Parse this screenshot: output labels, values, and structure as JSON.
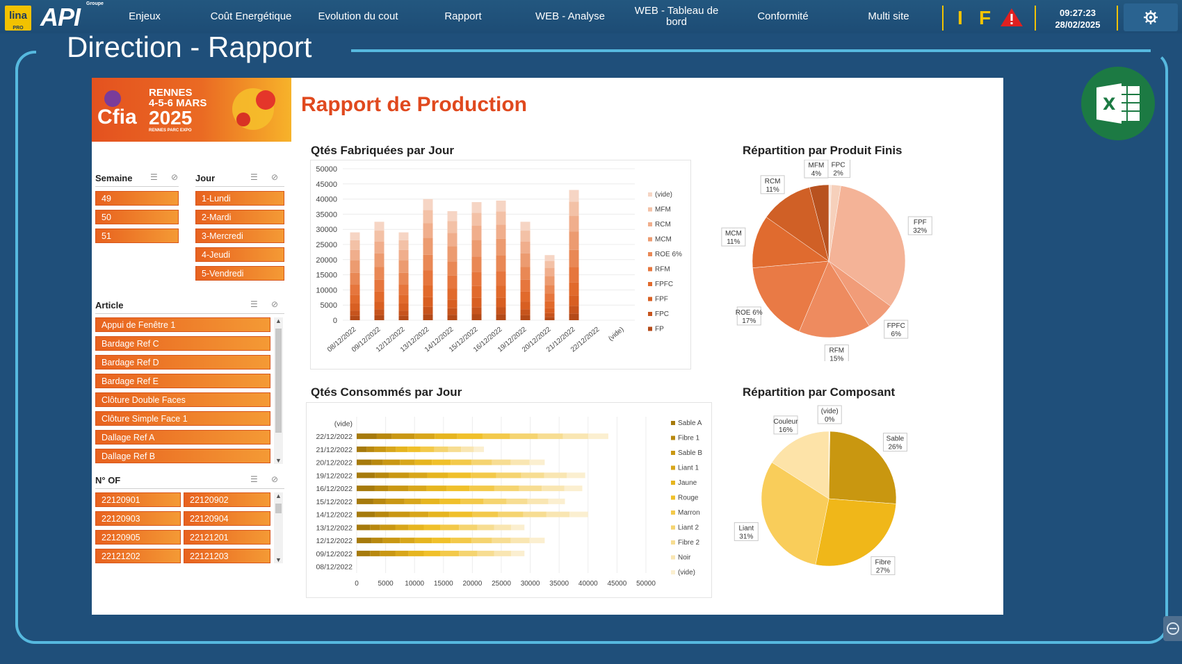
{
  "app": {
    "logo_lina": "lina",
    "logo_lina_sub": "PRO",
    "logo_api": "API",
    "logo_api_sub": "Groupe"
  },
  "nav": {
    "items": [
      "Enjeux",
      "Coût Energétique",
      "Evolution du cout",
      "Rapport",
      "WEB - Analyse",
      "WEB - Tableau de bord",
      "Conformité",
      "Multi site"
    ],
    "flags": [
      "I",
      "F"
    ],
    "time": "09:27:23",
    "date": "28/02/2025"
  },
  "page": {
    "title": "Direction - Rapport"
  },
  "report": {
    "title": "Rapport de Production",
    "banner": {
      "brand": "Cfia",
      "city": "RENNES",
      "dates": "4-5-6 MARS",
      "year": "2025",
      "venue": "RENNES PARC EXPO"
    }
  },
  "slicers": {
    "semaine": {
      "title": "Semaine",
      "items": [
        "49",
        "50",
        "51"
      ]
    },
    "jour": {
      "title": "Jour",
      "items": [
        "1-Lundi",
        "2-Mardi",
        "3-Mercredi",
        "4-Jeudi",
        "5-Vendredi"
      ]
    },
    "article": {
      "title": "Article",
      "items": [
        "Appui de Fenêtre 1",
        "Bardage Ref C",
        "Bardage Ref D",
        "Bardage Ref E",
        "Clôture Double Faces",
        "Clôture Simple Face 1",
        "Dallage Ref A",
        "Dallage Ref B"
      ]
    },
    "of": {
      "title": "N° OF",
      "items": [
        "22120901",
        "22120902",
        "22120903",
        "22120904",
        "22120905",
        "22121201",
        "22121202",
        "22121203"
      ]
    }
  },
  "chart_data": [
    {
      "type": "bar",
      "stacked": true,
      "title": "Qtés Fabriquées par Jour",
      "categories": [
        "08/12/2022",
        "09/12/2022",
        "12/12/2022",
        "13/12/2022",
        "14/12/2022",
        "15/12/2022",
        "16/12/2022",
        "19/12/2022",
        "20/12/2022",
        "21/12/2022",
        "22/12/2022",
        "(vide)"
      ],
      "totals": [
        29000,
        32500,
        29000,
        40000,
        36000,
        39000,
        39500,
        32500,
        21500,
        43000,
        0,
        0
      ],
      "series": [
        {
          "name": "(vide)",
          "color": "#f6d5c4"
        },
        {
          "name": "MFM",
          "color": "#f3c1a6"
        },
        {
          "name": "RCM",
          "color": "#f0ae8c"
        },
        {
          "name": "MCM",
          "color": "#ec9b70"
        },
        {
          "name": "ROE 6%",
          "color": "#e98855"
        },
        {
          "name": "RFM",
          "color": "#e6763d"
        },
        {
          "name": "FPFC",
          "color": "#e16a2c"
        },
        {
          "name": "FPF",
          "color": "#d85f22"
        },
        {
          "name": "FPC",
          "color": "#c7541d"
        },
        {
          "name": "FP",
          "color": "#b44a18"
        }
      ],
      "ylim": [
        0,
        50000
      ],
      "yticks": [
        "0",
        "5000",
        "10000",
        "15000",
        "20000",
        "25000",
        "30000",
        "35000",
        "40000",
        "45000",
        "50000"
      ],
      "legend": "right"
    },
    {
      "type": "pie",
      "title": "Répartition par Produit Finis",
      "slices": [
        {
          "label": "(vide)",
          "pct": "0%",
          "value": 0.5,
          "color": "#f8e2d6"
        },
        {
          "label": "FPC",
          "pct": "2%",
          "value": 2,
          "color": "#f6d0bb"
        },
        {
          "label": "FPF",
          "pct": "32%",
          "value": 32,
          "color": "#f4b397"
        },
        {
          "label": "FPFC",
          "pct": "6%",
          "value": 6,
          "color": "#f19c78"
        },
        {
          "label": "RFM",
          "pct": "15%",
          "value": 15,
          "color": "#ee8b5f"
        },
        {
          "label": "ROE 6%",
          "pct": "17%",
          "value": 17,
          "color": "#e97a45"
        },
        {
          "label": "MCM",
          "pct": "11%",
          "value": 11,
          "color": "#e06b2f"
        },
        {
          "label": "RCM",
          "pct": "11%",
          "value": 11,
          "color": "#d06026"
        },
        {
          "label": "MFM",
          "pct": "4%",
          "value": 4,
          "color": "#b8521f"
        }
      ]
    },
    {
      "type": "bar",
      "orientation": "horizontal",
      "stacked": true,
      "title": "Qtés Consommés par Jour",
      "categories": [
        "(vide)",
        "22/12/2022",
        "21/12/2022",
        "20/12/2022",
        "19/12/2022",
        "16/12/2022",
        "15/12/2022",
        "14/12/2022",
        "13/12/2022",
        "12/12/2022",
        "09/12/2022",
        "08/12/2022"
      ],
      "totals": [
        0,
        43500,
        22000,
        32500,
        39500,
        39000,
        36000,
        40000,
        29000,
        32500,
        29000,
        0
      ],
      "series": [
        {
          "name": "Sable A",
          "color": "#a67a0c"
        },
        {
          "name": "Fibre 1",
          "color": "#b8880e"
        },
        {
          "name": "Sable B",
          "color": "#c99713"
        },
        {
          "name": "Liant 1",
          "color": "#d8a61a"
        },
        {
          "name": "Jaune",
          "color": "#e6b51f"
        },
        {
          "name": "Rouge",
          "color": "#f0c02a"
        },
        {
          "name": "Marron",
          "color": "#f3c94a"
        },
        {
          "name": "Liant 2",
          "color": "#f5d470"
        },
        {
          "name": "Fibre 2",
          "color": "#f7dd92"
        },
        {
          "name": "Noir",
          "color": "#f9e6b2"
        },
        {
          "name": "(vide)",
          "color": "#fbefd0"
        }
      ],
      "xlim": [
        0,
        50000
      ],
      "xticks": [
        "0",
        "5000",
        "10000",
        "15000",
        "20000",
        "25000",
        "30000",
        "35000",
        "40000",
        "45000",
        "50000"
      ],
      "legend": "right"
    },
    {
      "type": "pie",
      "title": "Répartition par Composant",
      "slices": [
        {
          "label": "(vide)",
          "pct": "0%",
          "value": 0.3,
          "color": "#fdf3dc"
        },
        {
          "label": "Sable",
          "pct": "26%",
          "value": 26,
          "color": "#c99710"
        },
        {
          "label": "Fibre",
          "pct": "27%",
          "value": 27,
          "color": "#f0b719"
        },
        {
          "label": "Liant",
          "pct": "31%",
          "value": 31,
          "color": "#f9cd5a"
        },
        {
          "label": "Couleur",
          "pct": "16%",
          "value": 16,
          "color": "#fde3a8"
        }
      ]
    }
  ]
}
